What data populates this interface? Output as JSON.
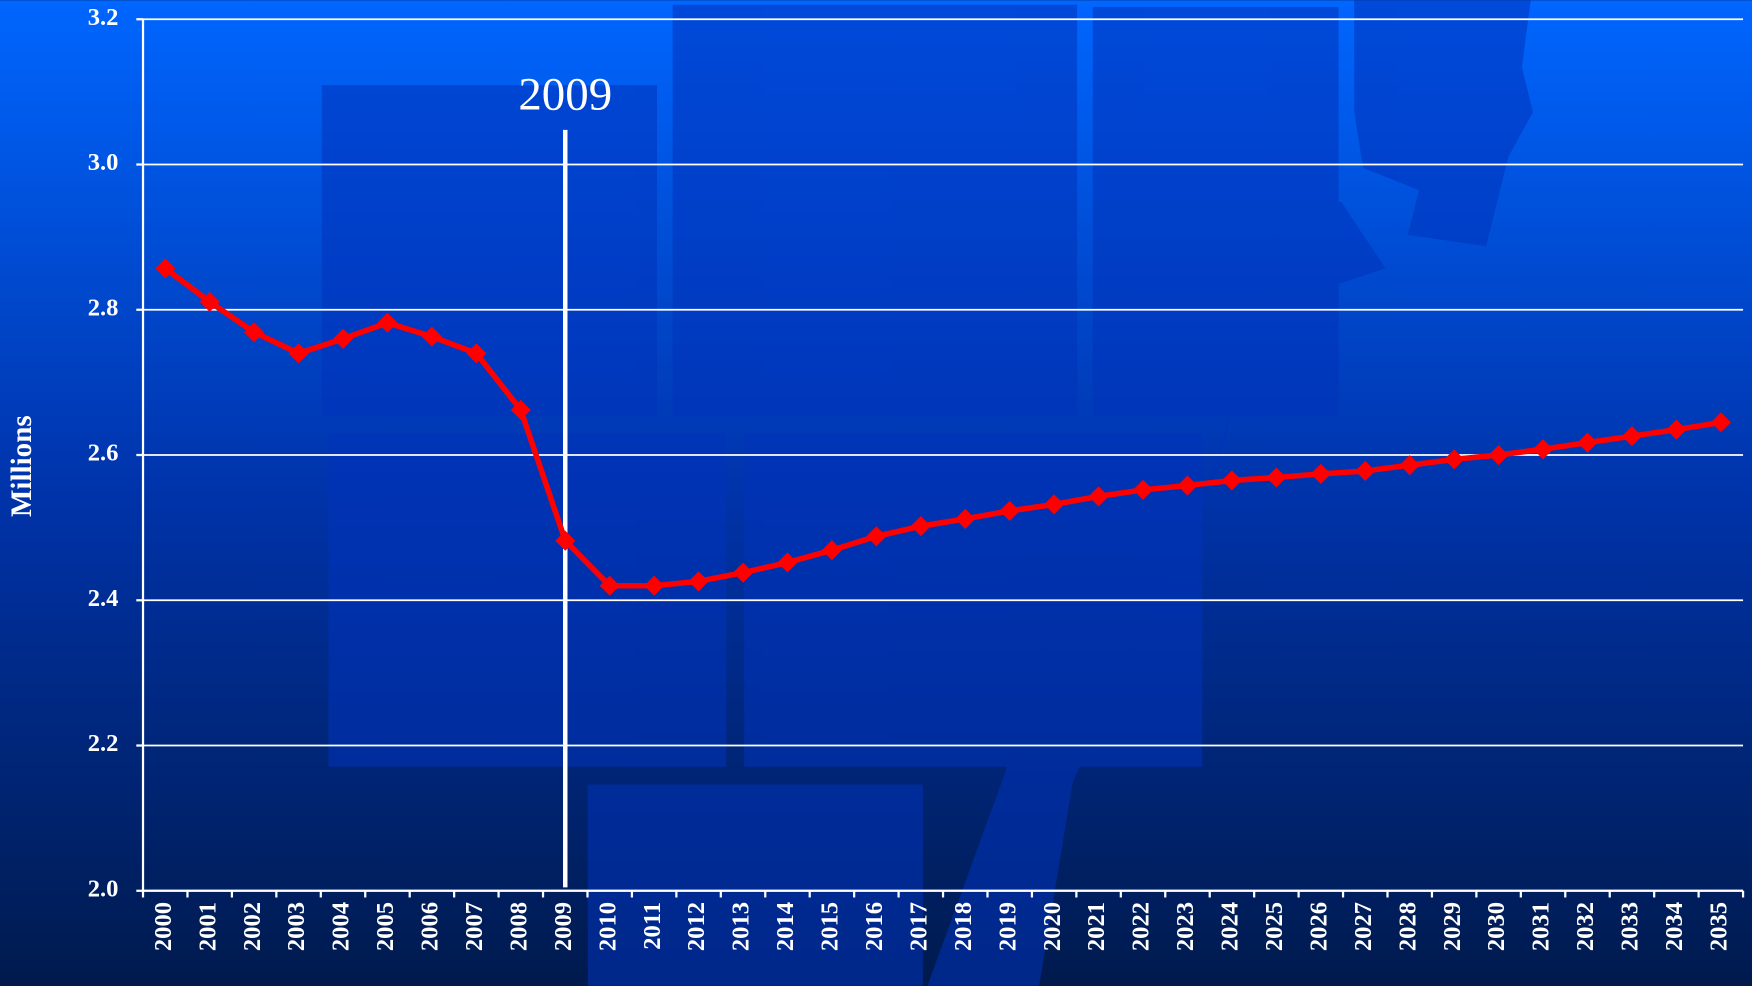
{
  "chart_data": {
    "type": "line",
    "y_label": "Millions",
    "annotation": "2009",
    "categories": [
      "2000",
      "2001",
      "2002",
      "2003",
      "2004",
      "2005",
      "2006",
      "2007",
      "2008",
      "2009",
      "2010",
      "2011",
      "2012",
      "2013",
      "2014",
      "2015",
      "2016",
      "2017",
      "2018",
      "2019",
      "2020",
      "2021",
      "2022",
      "2023",
      "2024",
      "2025",
      "2026",
      "2027",
      "2028",
      "2029",
      "2030",
      "2031",
      "2032",
      "2033",
      "2034",
      "2035"
    ],
    "values": [
      2.857,
      2.811,
      2.769,
      2.74,
      2.76,
      2.782,
      2.763,
      2.74,
      2.662,
      2.482,
      2.42,
      2.42,
      2.426,
      2.438,
      2.452,
      2.469,
      2.488,
      2.502,
      2.512,
      2.523,
      2.532,
      2.543,
      2.552,
      2.558,
      2.565,
      2.569,
      2.574,
      2.578,
      2.586,
      2.594,
      2.6,
      2.608,
      2.617,
      2.626,
      2.635,
      2.645
    ],
    "color": "#ff0000",
    "ylim": [
      2.0,
      3.2
    ],
    "yticks": [
      {
        "value": 2.0,
        "label": "2.0"
      },
      2.2,
      2.4,
      2.6,
      2.8,
      {
        "value": 3.0,
        "label": "3.0"
      },
      3.2
    ],
    "grid": true
  }
}
